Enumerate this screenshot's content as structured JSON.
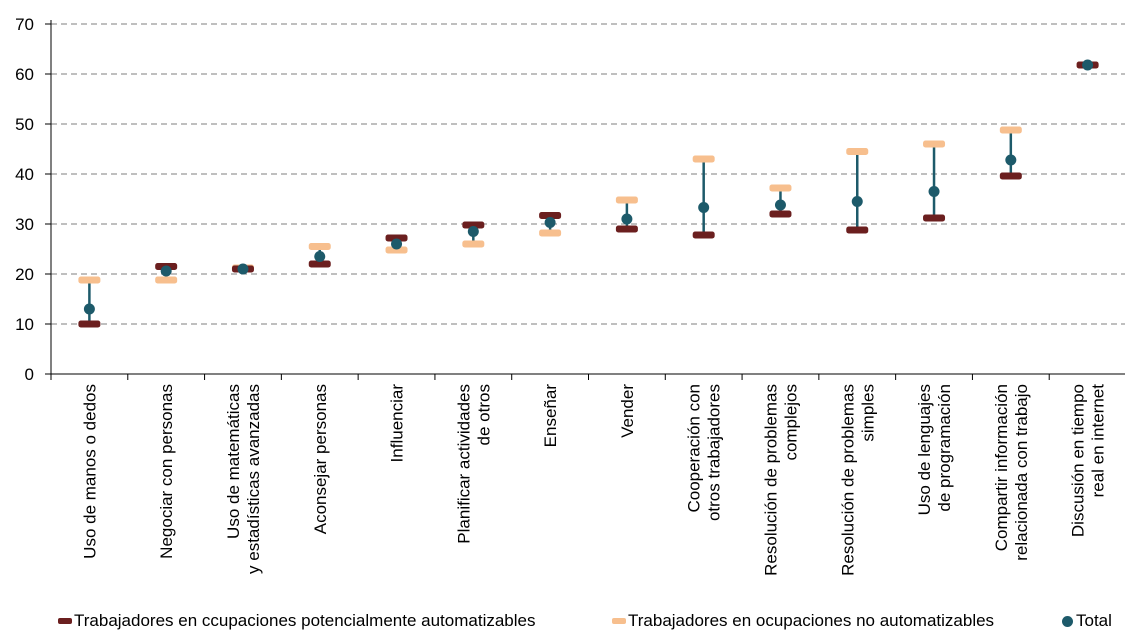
{
  "chart_data": {
    "type": "range-dot",
    "categories": [
      [
        "Uso de manos o dedos"
      ],
      [
        "Negociar con personas"
      ],
      [
        "Uso de matemáticas",
        "y estadísticas avanzadas"
      ],
      [
        "Aconsejar personas"
      ],
      [
        "Influenciar"
      ],
      [
        "Planificar actividades",
        "de otros"
      ],
      [
        "Enseñar"
      ],
      [
        "Vender"
      ],
      [
        "Cooperación con",
        "otros trabajadores"
      ],
      [
        "Resolución de problemas",
        "complejos"
      ],
      [
        "Resolución de problemas",
        "simples"
      ],
      [
        "Uso de lenguajes",
        "de programación"
      ],
      [
        "Compartir información",
        "relacionada con trabajo"
      ],
      [
        "Discusión en tiempo",
        "real en internet"
      ]
    ],
    "series": [
      {
        "name": "Trabajadores en ccupaciones potencialmente automatizables",
        "values": [
          10,
          21.5,
          21,
          22,
          27.2,
          29.8,
          31.7,
          29,
          27.8,
          32,
          28.8,
          31.2,
          39.6,
          61.8
        ]
      },
      {
        "name": "Trabajadores en ocupaciones no automatizables",
        "values": [
          18.8,
          18.8,
          21.2,
          25.5,
          24.8,
          26,
          28.2,
          34.8,
          43,
          37.2,
          44.5,
          46,
          48.8,
          61.8
        ]
      },
      {
        "name": "Total",
        "values": [
          13,
          20.6,
          21,
          23.5,
          26,
          28.5,
          30.3,
          31,
          33.3,
          33.8,
          34.5,
          36.5,
          42.8,
          61.8
        ]
      }
    ],
    "y_ticks": [
      "0",
      "10",
      "20",
      "30",
      "40",
      "50",
      "60",
      "70"
    ],
    "ylim": [
      0,
      70
    ],
    "grid": "horizontal-dashed",
    "legend_position": "bottom",
    "colors": {
      "automatizables": "#6b1f1f",
      "no_automatizables": "#f7bf8e",
      "total": "#1d5a6a",
      "connector": "#1d5a6a",
      "grid": "#7f7f7f",
      "axis": "#000000"
    }
  },
  "legend": {
    "automatizables_label": "Trabajadores en ccupaciones potencialmente automatizables",
    "no_automatizables_label": "Trabajadores en ocupaciones no automatizables",
    "total_label": "Total"
  }
}
